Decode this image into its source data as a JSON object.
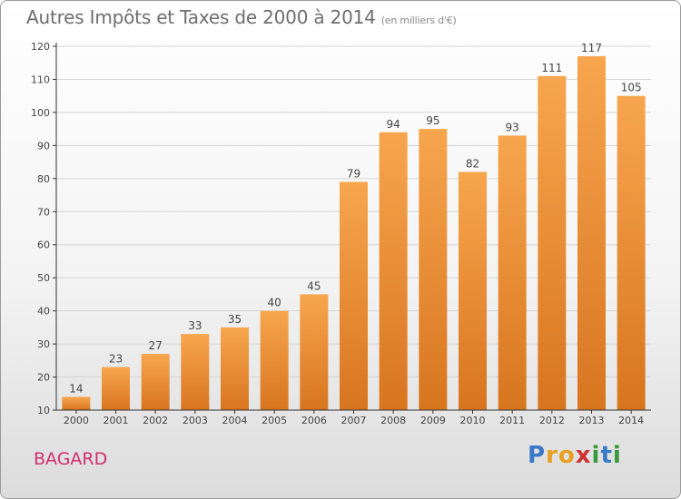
{
  "header": {
    "title": "Autres Impôts et Taxes de 2000 à 2014",
    "subtitle": "(en milliers d'€)"
  },
  "footer": {
    "commune": "BAGARD",
    "logo_letters": [
      "P",
      "r",
      "o",
      "x",
      "i",
      "t",
      "i"
    ],
    "logo_colors": [
      "#3a78c8",
      "#e8a020",
      "#e8a020",
      "#d03030",
      "#3a9a3a",
      "#3a78c8",
      "#3a9a3a"
    ]
  },
  "colors": {
    "bar_light": "#f7a64e",
    "bar_dark": "#d8751f",
    "axis": "#333333",
    "grid": "#d6d6d6",
    "label": "#444444"
  },
  "chart_data": {
    "type": "bar",
    "categories": [
      "2000",
      "2001",
      "2002",
      "2003",
      "2004",
      "2005",
      "2006",
      "2007",
      "2008",
      "2009",
      "2010",
      "2011",
      "2012",
      "2013",
      "2014"
    ],
    "values": [
      14,
      23,
      27,
      33,
      35,
      40,
      45,
      79,
      94,
      95,
      82,
      93,
      111,
      117,
      105
    ],
    "ylim": [
      10,
      120
    ],
    "yticks": [
      10,
      20,
      30,
      40,
      50,
      60,
      70,
      80,
      90,
      100,
      110,
      120
    ],
    "grid": "horizontal",
    "data_labels": true
  }
}
